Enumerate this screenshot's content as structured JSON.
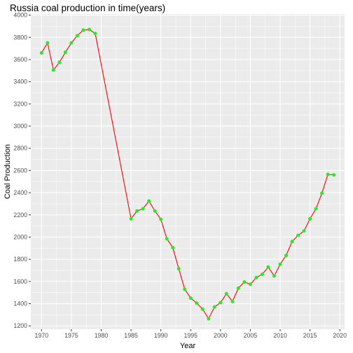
{
  "chart_data": {
    "type": "line",
    "title": "Russia coal production in time(years)",
    "xlabel": "Year",
    "ylabel": "Coal Production",
    "xlim": [
      1968.2,
      2020.8
    ],
    "ylim": [
      1170,
      4010
    ],
    "x_ticks": [
      1970,
      1975,
      1980,
      1985,
      1990,
      1995,
      2000,
      2005,
      2010,
      2015,
      2020
    ],
    "y_ticks": [
      1200,
      1400,
      1600,
      1800,
      2000,
      2200,
      2400,
      2600,
      2800,
      3000,
      3200,
      3400,
      3600,
      3800,
      4000
    ],
    "grid": true,
    "line_color": "#ff0000",
    "point_color": "#22ee22",
    "panel_color": "#ebebeb",
    "series": [
      {
        "x": [
          1970,
          1971,
          1972,
          1973,
          1974,
          1975,
          1976,
          1977,
          1978,
          1979,
          1985,
          1986,
          1987,
          1988,
          1989,
          1990,
          1991,
          1992,
          1993,
          1994,
          1995,
          1996,
          1997,
          1998,
          1999,
          2000,
          2001,
          2002,
          2003,
          2004,
          2005,
          2006,
          2007,
          2008,
          2009,
          2010,
          2011,
          2012,
          2013,
          2014,
          2015,
          2016,
          2017,
          2018,
          2019
        ],
        "values": [
          3660,
          3750,
          3505,
          3575,
          3665,
          3750,
          3815,
          3865,
          3870,
          3835,
          2165,
          2235,
          2255,
          2325,
          2235,
          2160,
          1985,
          1905,
          1715,
          1530,
          1450,
          1405,
          1350,
          1265,
          1370,
          1410,
          1490,
          1420,
          1540,
          1595,
          1575,
          1635,
          1665,
          1730,
          1650,
          1755,
          1835,
          1960,
          2015,
          2055,
          2165,
          2255,
          2395,
          2565,
          2560
        ]
      }
    ]
  }
}
